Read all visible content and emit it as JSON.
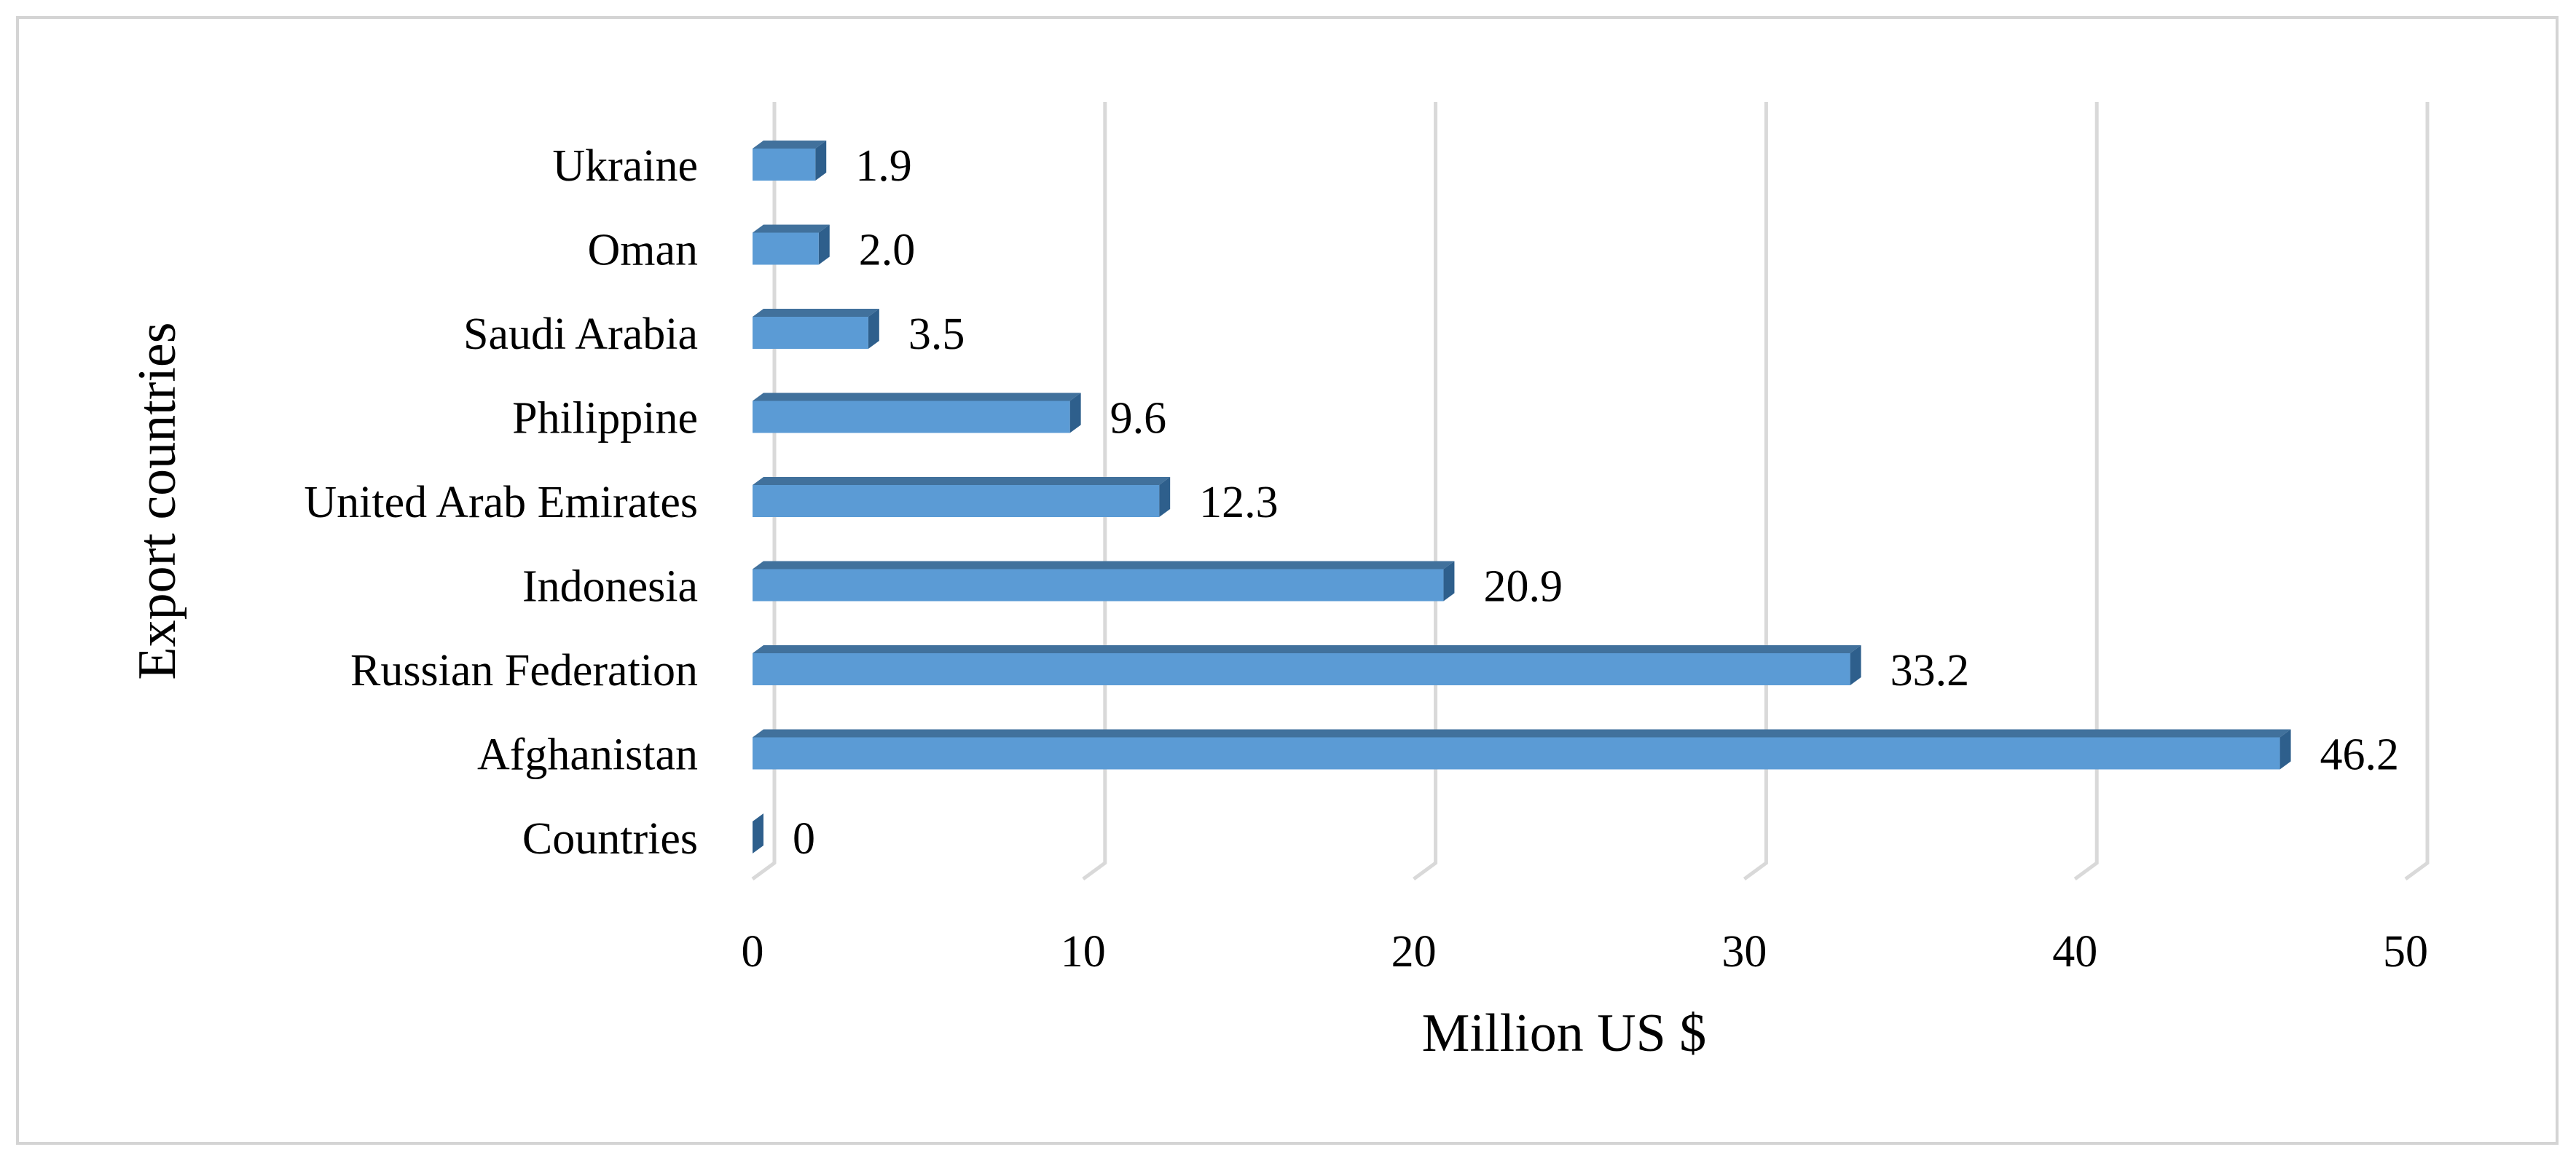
{
  "chart_data": {
    "type": "bar",
    "orientation": "horizontal",
    "title": "",
    "xlabel": "Million US $",
    "ylabel": "Export countries",
    "categories": [
      "Countries",
      "Afghanistan",
      "Russian Federation",
      "Indonesia",
      "United Arab Emirates",
      "Philippine",
      "Saudi Arabia",
      "Oman",
      "Ukraine"
    ],
    "values": [
      0,
      46.2,
      33.2,
      20.9,
      12.3,
      9.6,
      3.5,
      2.0,
      1.9
    ],
    "value_labels": [
      "0",
      "46.2",
      "33.2",
      "20.9",
      "12.3",
      "9.6",
      "3.5",
      "2.0",
      "1.9"
    ],
    "xlim": [
      0,
      50
    ],
    "xticks": [
      "0",
      "10",
      "20",
      "30",
      "40",
      "50"
    ],
    "grid": true,
    "legend": "none",
    "style": "3d",
    "colors": {
      "bar_front": "#5b9bd5",
      "bar_top": "#41719c",
      "bar_side": "#2e5f8c",
      "grid": "#d9d9d9"
    }
  }
}
